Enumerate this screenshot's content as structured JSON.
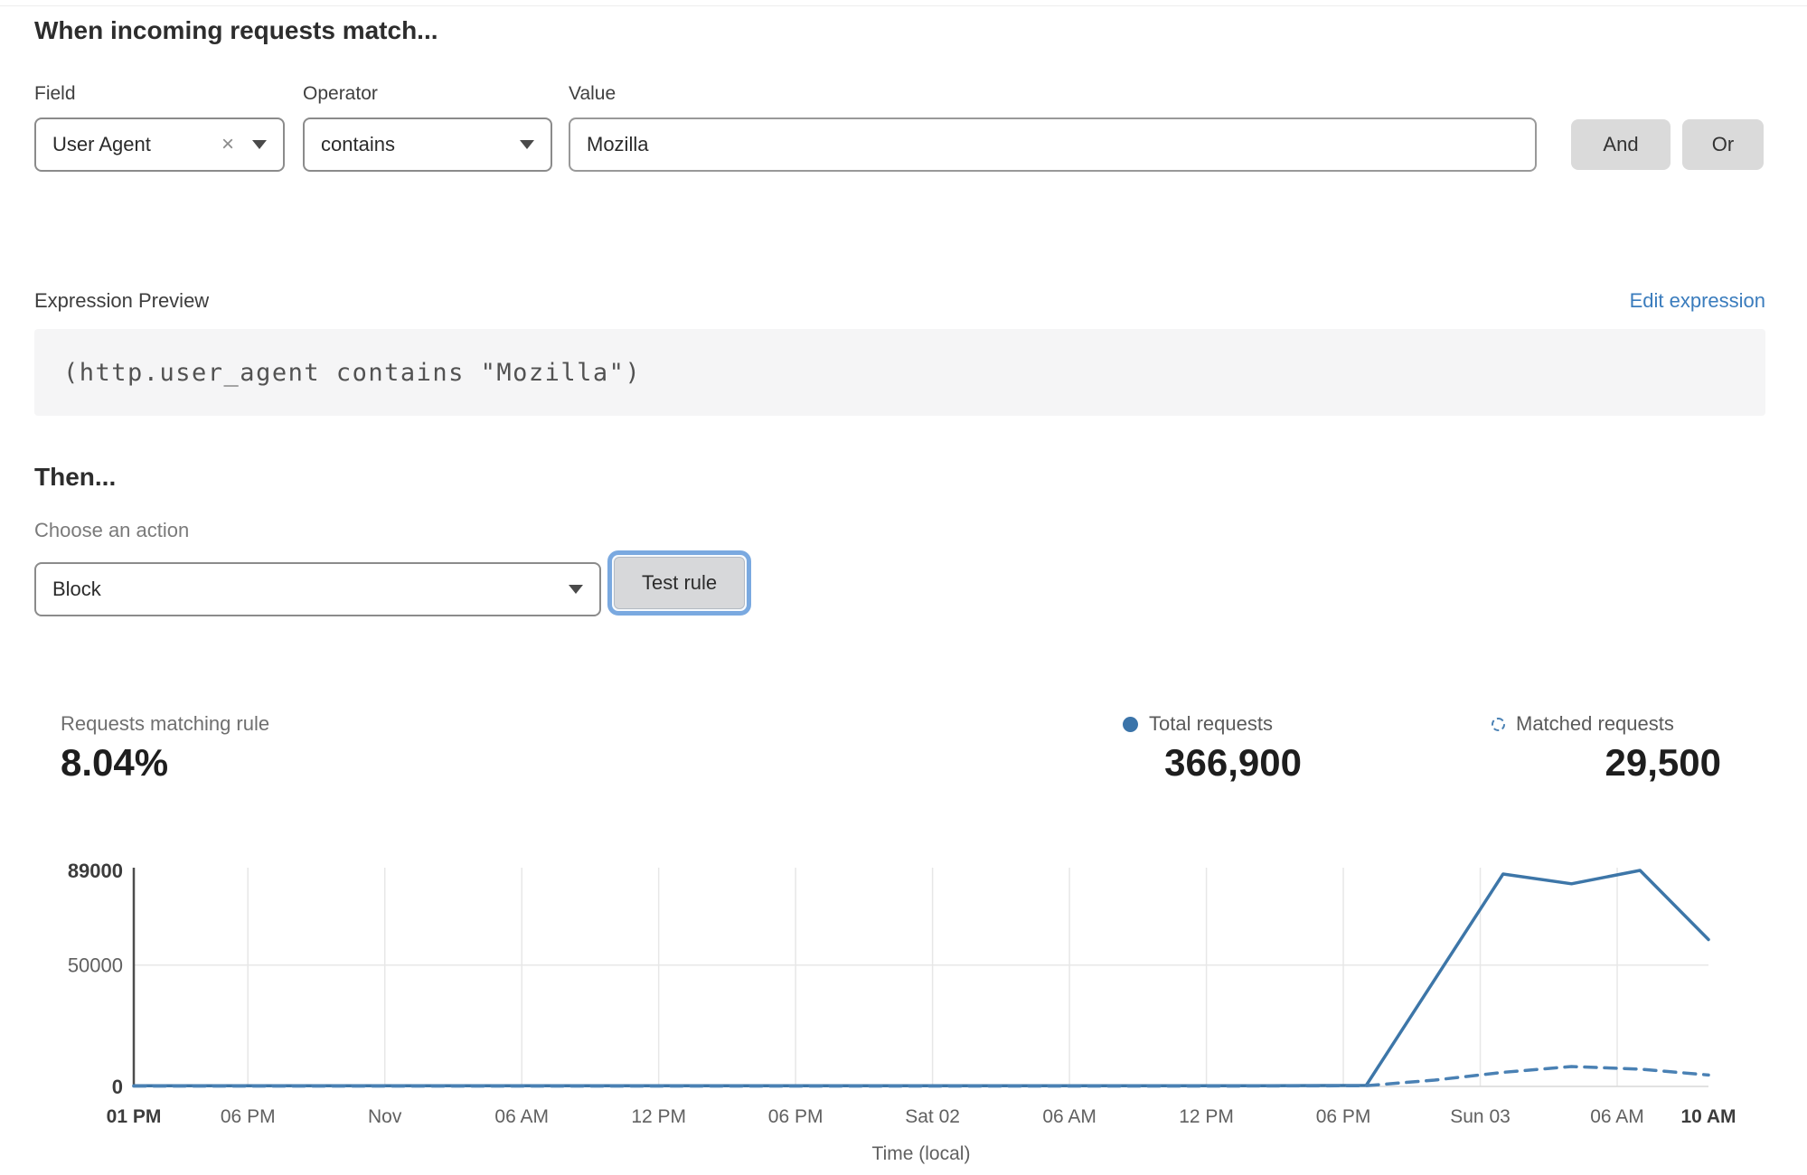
{
  "rule_builder": {
    "heading": "When incoming requests match...",
    "field": {
      "label": "Field",
      "selected": "User Agent"
    },
    "operator": {
      "label": "Operator",
      "selected": "contains"
    },
    "value": {
      "label": "Value",
      "text": "Mozilla"
    },
    "and_button": "And",
    "or_button": "Or",
    "icons": {
      "clear": "×",
      "dropdown": "caret-down"
    }
  },
  "expression_preview": {
    "label": "Expression Preview",
    "edit_link": "Edit expression",
    "code": "(http.user_agent contains \"Mozilla\")"
  },
  "then_section": {
    "heading": "Then...",
    "action_label": "Choose an action",
    "action_selected": "Block",
    "test_rule_button": "Test rule"
  },
  "stats": {
    "matching_label": "Requests matching rule",
    "matching_value": "8.04%",
    "total_label": "Total requests",
    "total_value": "366,900",
    "matched_label": "Matched requests",
    "matched_value": "29,500"
  },
  "colors": {
    "link_blue": "#3a7cbd",
    "line_solid": "#3d76a8",
    "line_dashed": "#4a81b4",
    "grid": "#e7e7e7",
    "axis_dark": "#4d4d4d",
    "baseline": "#d9d9d9",
    "tick_bold": "#3c3c3c",
    "tick_regular": "#606060"
  },
  "chart_data": {
    "type": "line",
    "xlabel": "Time (local)",
    "x_unit": "hours from Fri 31 Oct 01 PM (local)",
    "x_range_hours": [
      0,
      69
    ],
    "ylim": [
      0,
      89000
    ],
    "grid": "on",
    "legend_position": "top-right-above-chart",
    "y_ticks": [
      {
        "value": 89000,
        "label": "89000",
        "bold": true
      },
      {
        "value": 50000,
        "label": "50000",
        "bold": false
      },
      {
        "value": 0,
        "label": "0",
        "bold": true
      }
    ],
    "x_ticks": [
      {
        "t": 0,
        "label": "01 PM",
        "bold": true
      },
      {
        "t": 5,
        "label": "06 PM",
        "bold": false
      },
      {
        "t": 11,
        "label": "Nov",
        "bold": false
      },
      {
        "t": 17,
        "label": "06 AM",
        "bold": false
      },
      {
        "t": 23,
        "label": "12 PM",
        "bold": false
      },
      {
        "t": 29,
        "label": "06 PM",
        "bold": false
      },
      {
        "t": 35,
        "label": "Sat 02",
        "bold": false
      },
      {
        "t": 41,
        "label": "06 AM",
        "bold": false
      },
      {
        "t": 47,
        "label": "12 PM",
        "bold": false
      },
      {
        "t": 53,
        "label": "06 PM",
        "bold": false
      },
      {
        "t": 59,
        "label": "Sun 03",
        "bold": false
      },
      {
        "t": 65,
        "label": "06 AM",
        "bold": false
      },
      {
        "t": 69,
        "label": "10 AM",
        "bold": true
      }
    ],
    "grid_h_values": [
      50000
    ],
    "series": [
      {
        "name": "Total requests",
        "style": "solid",
        "points": [
          [
            0,
            250
          ],
          [
            6,
            250
          ],
          [
            12,
            250
          ],
          [
            18,
            250
          ],
          [
            24,
            250
          ],
          [
            30,
            250
          ],
          [
            36,
            250
          ],
          [
            42,
            250
          ],
          [
            48,
            250
          ],
          [
            54,
            400
          ],
          [
            60,
            87500
          ],
          [
            63,
            83500
          ],
          [
            66,
            89000
          ],
          [
            69,
            60500
          ]
        ]
      },
      {
        "name": "Matched requests",
        "style": "dashed",
        "points": [
          [
            0,
            150
          ],
          [
            6,
            150
          ],
          [
            12,
            150
          ],
          [
            18,
            150
          ],
          [
            24,
            150
          ],
          [
            30,
            150
          ],
          [
            36,
            150
          ],
          [
            42,
            150
          ],
          [
            48,
            150
          ],
          [
            54,
            300
          ],
          [
            57,
            2600
          ],
          [
            60,
            5800
          ],
          [
            63,
            8200
          ],
          [
            66,
            7100
          ],
          [
            69,
            4700
          ]
        ]
      }
    ]
  }
}
